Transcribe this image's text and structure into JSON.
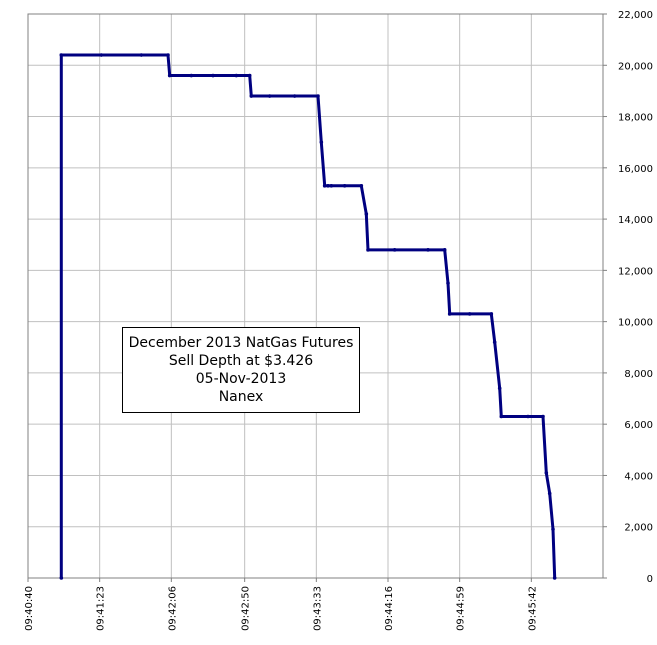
{
  "chart_data": {
    "type": "line",
    "title": "",
    "xlabel": "",
    "ylabel": "",
    "annotation": {
      "lines": [
        "December 2013 NatGas Futures",
        "Sell Depth at $3.426",
        "05-Nov-2013",
        "Nanex"
      ]
    },
    "x_ticks": [
      "09:40:40",
      "09:41:23",
      "09:42:06",
      "09:42:50",
      "09:43:33",
      "09:44:16",
      "09:44:59",
      "09:45:42"
    ],
    "y_ticks": [
      "0",
      "2,000",
      "4,000",
      "6,000",
      "8,000",
      "10,000",
      "12,000",
      "14,000",
      "16,000",
      "18,000",
      "20,000",
      "22,000"
    ],
    "xlim": [
      "09:40:40",
      "09:46:25"
    ],
    "ylim": [
      0,
      22000
    ],
    "grid": true,
    "y_axis_side": "right",
    "series": [
      {
        "color": "#000080",
        "x": [
          "09:41:00",
          "09:41:00",
          "09:41:24",
          "09:41:48",
          "09:42:04",
          "09:42:05",
          "09:42:18",
          "09:42:31",
          "09:42:45",
          "09:42:53",
          "09:42:54",
          "09:43:05",
          "09:43:20",
          "09:43:34",
          "09:43:36",
          "09:43:38",
          "09:43:40",
          "09:43:42",
          "09:43:50",
          "09:44:00",
          "09:44:03",
          "09:44:04",
          "09:44:20",
          "09:44:40",
          "09:44:50",
          "09:44:52",
          "09:44:53",
          "09:45:05",
          "09:45:18",
          "09:45:20",
          "09:45:23",
          "09:45:24",
          "09:45:40",
          "09:45:49",
          "09:45:51",
          "09:45:53",
          "09:45:55",
          "09:45:56"
        ],
        "values": [
          0,
          20400,
          20400,
          20400,
          20400,
          19600,
          19600,
          19600,
          19600,
          19600,
          18800,
          18800,
          18800,
          18800,
          17000,
          15300,
          15300,
          15300,
          15300,
          15300,
          14200,
          12800,
          12800,
          12800,
          12800,
          11500,
          10300,
          10300,
          10300,
          9200,
          7400,
          6300,
          6300,
          6300,
          4100,
          3300,
          1900,
          0
        ]
      }
    ]
  }
}
